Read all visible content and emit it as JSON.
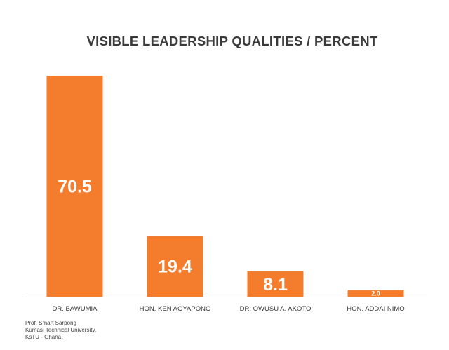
{
  "chart_data": {
    "type": "bar",
    "title": "VISIBLE LEADERSHIP QUALITIES / PERCENT",
    "categories": [
      "DR. BAWUMIA",
      "HON. KEN AGYAPONG",
      "DR. OWUSU A. AKOTO",
      "HON. ADDAI NIMO"
    ],
    "values": [
      70.5,
      19.4,
      8.1,
      2.0
    ],
    "data_labels": [
      "70.5",
      "19.4",
      "8.1",
      "2.0"
    ],
    "xlabel": "",
    "ylabel": "",
    "ylim": [
      0,
      75
    ],
    "grid": false,
    "legend": "none",
    "bar_color": "#f47c2d",
    "label_color": "#ffffff",
    "axis_color": "#c8c8c8",
    "category_label_color": "#3a3a3a"
  },
  "source_note": {
    "line1": "Prof. Smart Sarpong",
    "line2": "Kumasi Technical University,",
    "line3": "KsTU - Ghana."
  }
}
